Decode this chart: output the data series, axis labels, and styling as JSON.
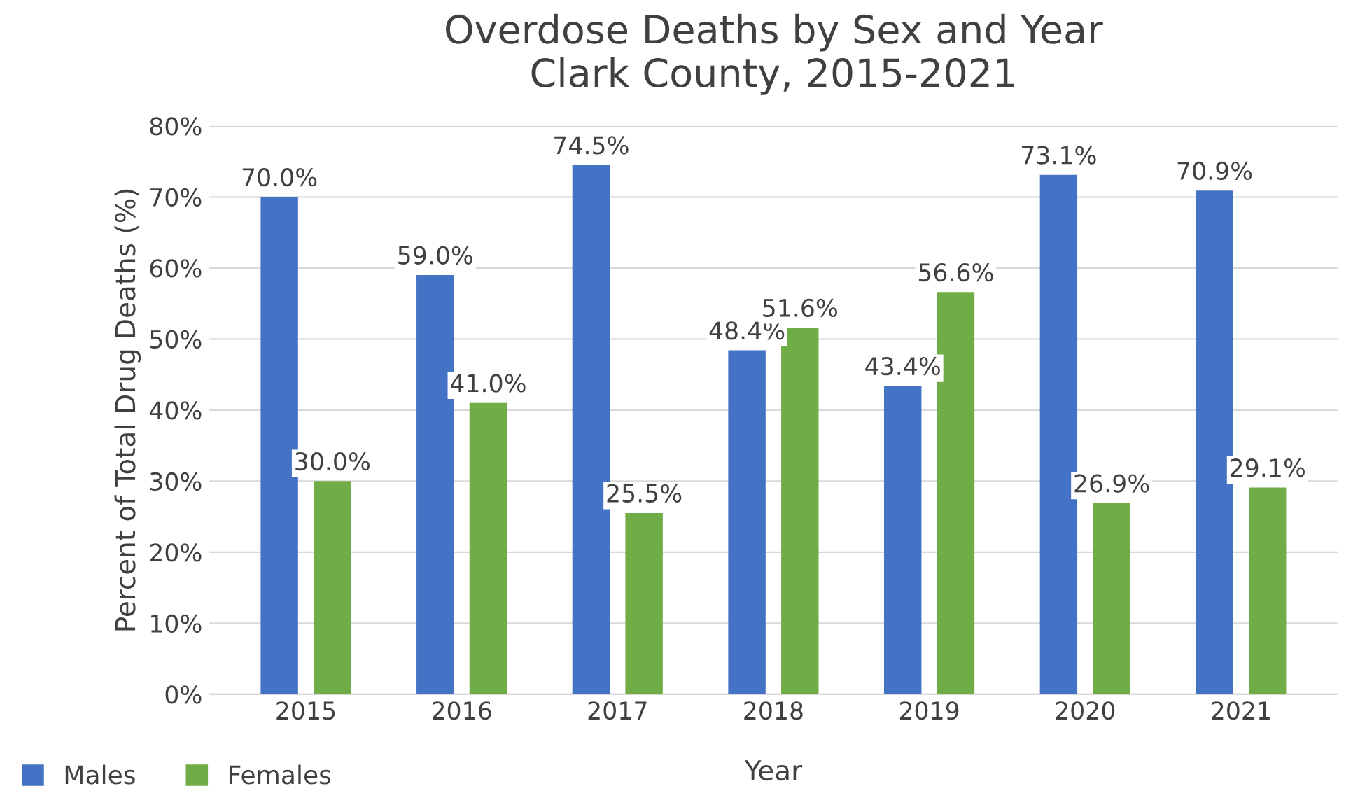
{
  "chart_data": {
    "type": "bar",
    "title": "Overdose Deaths by Sex and Year\nClark County, 2015-2021",
    "xlabel": "Year",
    "ylabel": "Percent of Total Drug Deaths (%)",
    "categories": [
      "2015",
      "2016",
      "2017",
      "2018",
      "2019",
      "2020",
      "2021"
    ],
    "series": [
      {
        "name": "Males",
        "color": "#4472c4",
        "values": [
          70.0,
          59.0,
          74.5,
          48.4,
          43.4,
          73.1,
          70.9
        ],
        "value_labels": [
          "70.0%",
          "59.0%",
          "74.5%",
          "48.4%",
          "43.4%",
          "73.1%",
          "70.9%"
        ]
      },
      {
        "name": "Females",
        "color": "#70ad47",
        "values": [
          30.0,
          41.0,
          25.5,
          51.6,
          56.6,
          26.9,
          29.1
        ],
        "value_labels": [
          "30.0%",
          "41.0%",
          "25.5%",
          "51.6%",
          "56.6%",
          "26.9%",
          "29.1%"
        ]
      }
    ],
    "ylim": [
      0,
      80
    ],
    "yticks": [
      {
        "value": 0,
        "label": "0%"
      },
      {
        "value": 10,
        "label": "10%"
      },
      {
        "value": 20,
        "label": "20%"
      },
      {
        "value": 30,
        "label": "30%"
      },
      {
        "value": 40,
        "label": "40%"
      },
      {
        "value": 50,
        "label": "50%"
      },
      {
        "value": 60,
        "label": "60%"
      },
      {
        "value": 70,
        "label": "70%"
      },
      {
        "value": 80,
        "label": "80%"
      }
    ],
    "grid": "y",
    "legend": "bottom left"
  }
}
